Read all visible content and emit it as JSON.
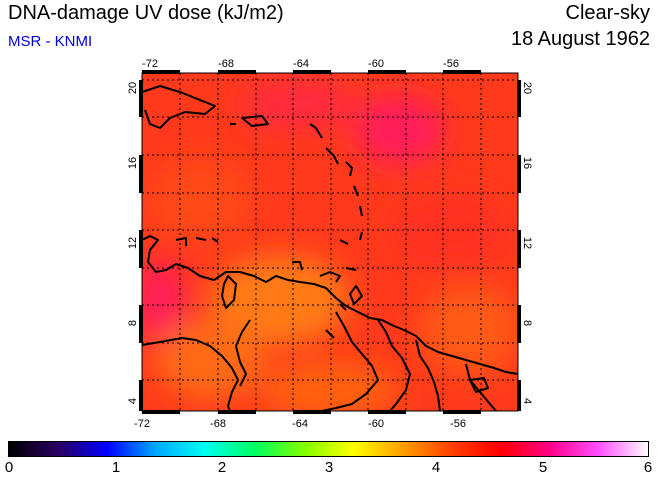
{
  "header": {
    "title": "DNA-damage UV dose (kJ/m2)",
    "subtitle": "MSR - KNMI",
    "product": "Clear-sky",
    "date": "18 August 1962"
  },
  "map": {
    "lon_ticks": [
      "-72",
      "-68",
      "-64",
      "-60",
      "-56"
    ],
    "lat_ticks": [
      "20",
      "16",
      "12",
      "8",
      "4"
    ]
  },
  "colorbar": {
    "labels": [
      "0",
      "1",
      "2",
      "3",
      "4",
      "5",
      "6"
    ],
    "colors": [
      "#000000",
      "#2a0060",
      "#0000ff",
      "#00aaff",
      "#00ffee",
      "#00ff60",
      "#80ff00",
      "#ffff00",
      "#ffa000",
      "#ff4000",
      "#ff0000",
      "#ff0088",
      "#ff50ff",
      "#ffffff"
    ]
  },
  "colors": {
    "field_base": "#ff3a1c",
    "field_orange": "#ff7a14",
    "field_magenta": "#ff1a5a",
    "coast": "#000000",
    "subtitle": "#0000dd"
  }
}
